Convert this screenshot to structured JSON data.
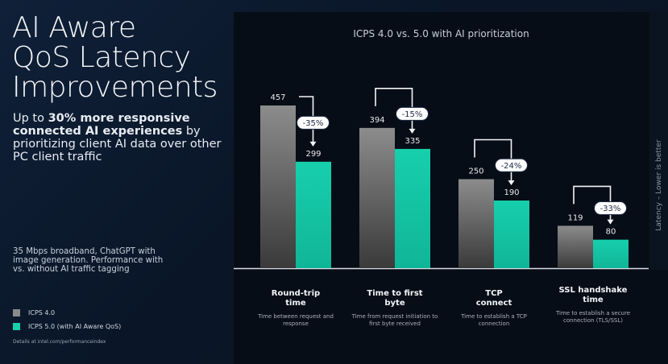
{
  "slide": {
    "title_lines": [
      "AI Aware",
      "QoS Latency",
      "Improvements"
    ],
    "subtitle_prefix": "Up to ",
    "subtitle_bold": "30% more responsive connected AI experiences",
    "subtitle_rest": " by prioritizing client AI data over other PC client traffic",
    "note": "35 Mbps broadband, ChatGPT with image generation. Performance with vs. without AI traffic tagging",
    "details": "Details at intel.com/performanceindex"
  },
  "colors": {
    "icps4": "#8a8a8a",
    "icps5": "#17cfad",
    "background": "#0a1628",
    "panel": "#070d16"
  },
  "chart_data": {
    "type": "bar",
    "title": "ICPS 4.0 vs. 5.0 with AI prioritization",
    "ylabel": "Latency – Lower is better",
    "categories": [
      "Round-trip time",
      "Time to first byte",
      "TCP connect",
      "SSL handshake time"
    ],
    "category_descriptions": [
      "Time between request and response",
      "Time from request initiation to first byte received",
      "Time to establish a TCP connection",
      "Time to establish a secure connection (TLS/SSL)"
    ],
    "series": [
      {
        "name": "ICPS 4.0",
        "values": [
          457,
          394,
          250,
          119
        ]
      },
      {
        "name": "ICPS 5.0 (with AI Aware QoS)",
        "values": [
          299,
          335,
          190,
          80
        ]
      }
    ],
    "change_labels": [
      "-35%",
      "-15%",
      "-24%",
      "-33%"
    ],
    "grid": false,
    "legend": "bottom-left"
  }
}
